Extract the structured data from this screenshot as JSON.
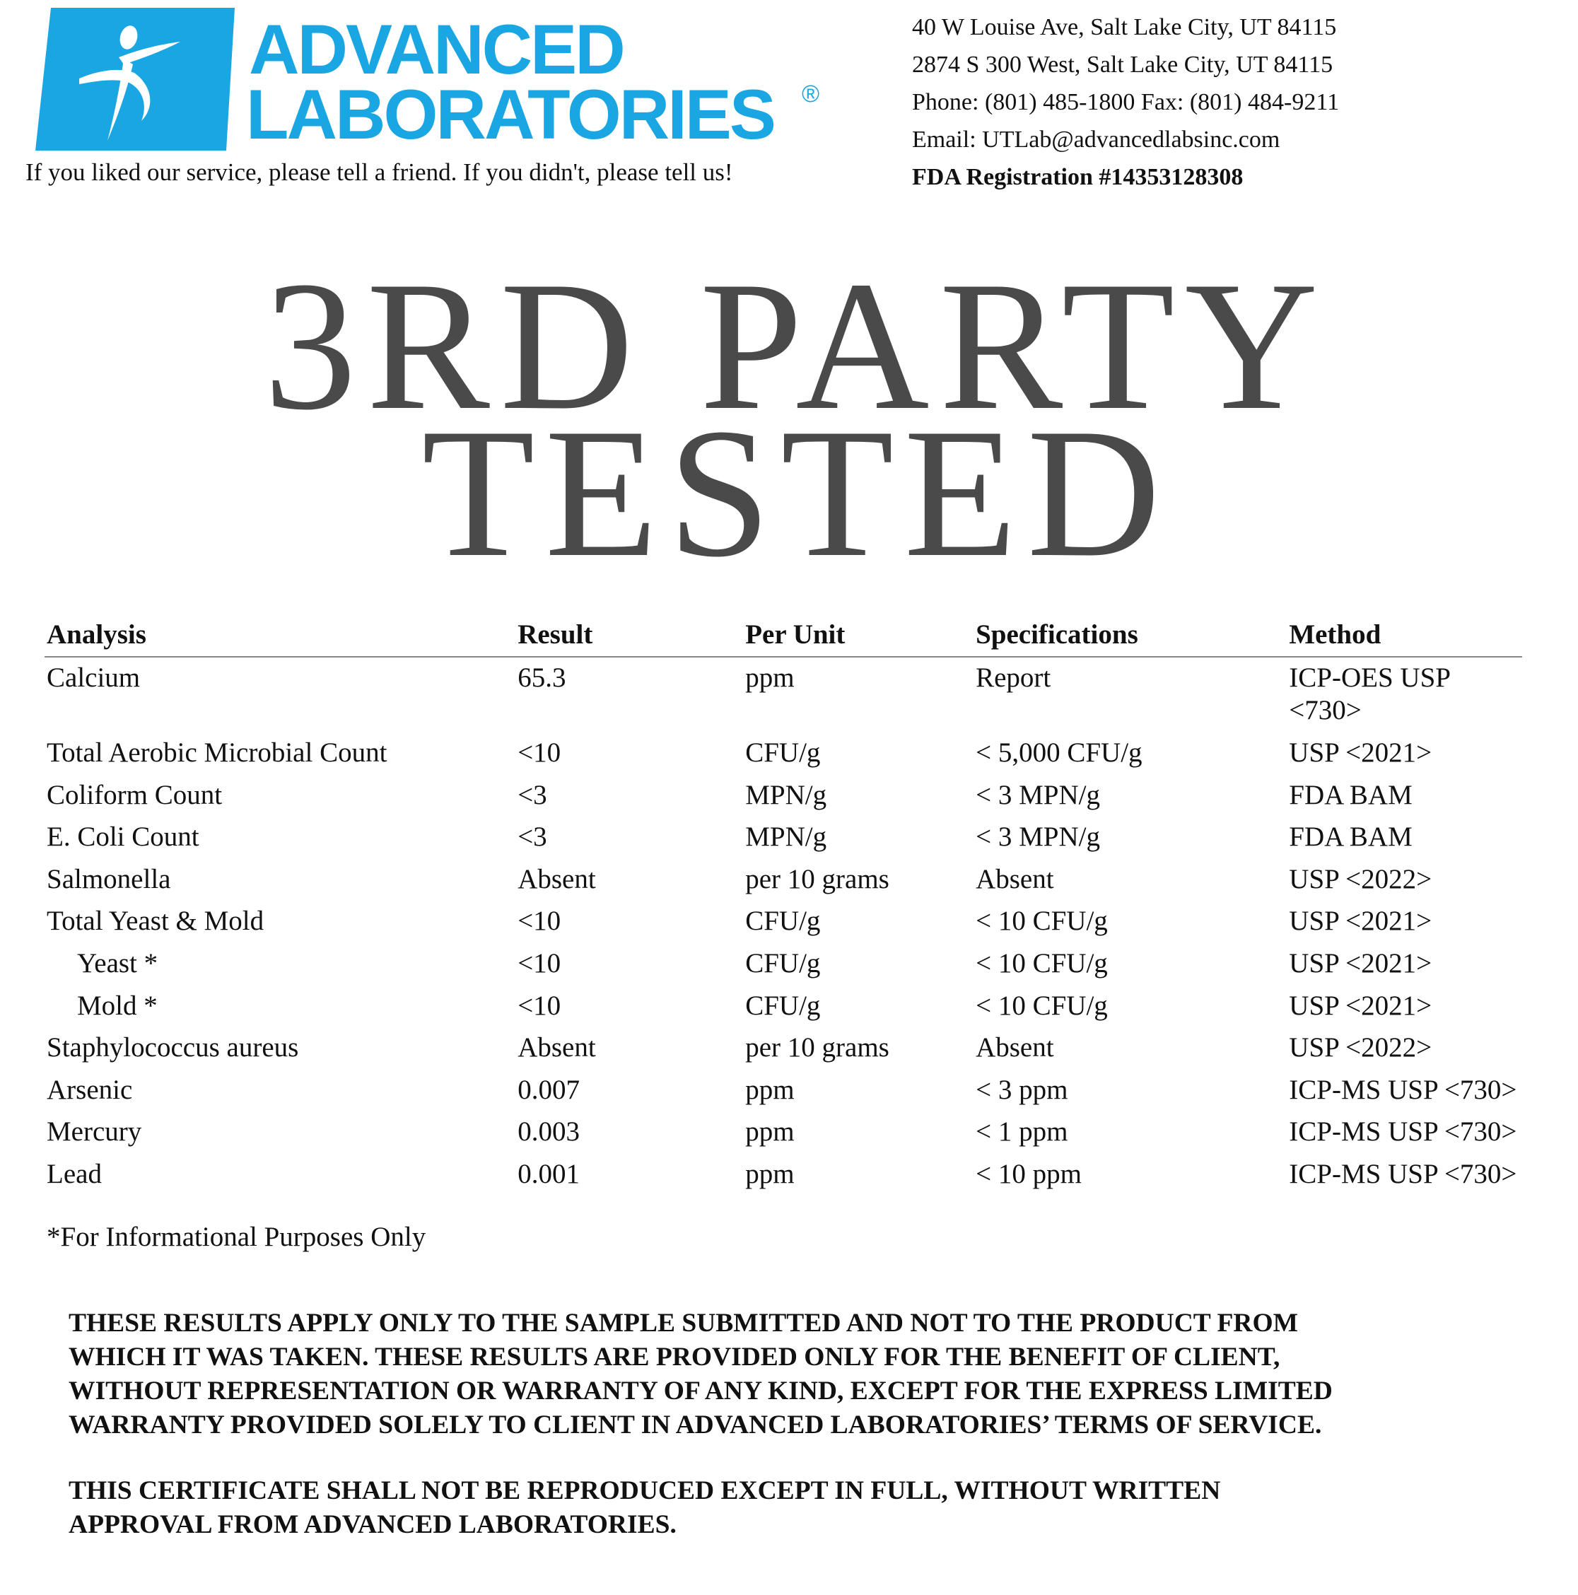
{
  "logo": {
    "line1": "ADVANCED",
    "line2": "LABORATORIES",
    "registered": "®",
    "brand_color": "#1aa6e3",
    "icon": "running-figure-icon"
  },
  "tagline": "If you liked our service, please tell a friend.  If you didn't, please tell us!",
  "address": {
    "line1": "40 W Louise Ave, Salt Lake City, UT 84115",
    "line2": "2874 S 300 West, Salt Lake City, UT 84115",
    "phone": "Phone: (801) 485-1800 Fax: (801) 484-9211",
    "email": "Email: UTLab@advancedlabsinc.com",
    "fda": "FDA Registration #14353128308"
  },
  "title": {
    "line1": "3RD PARTY",
    "line2": "TESTED"
  },
  "table": {
    "headers": [
      "Analysis",
      "Result",
      "Per Unit",
      "Specifications",
      "Method"
    ],
    "rows": [
      [
        "Calcium",
        "65.3",
        "ppm",
        "Report",
        "ICP-OES USP <730>"
      ],
      [
        "Total Aerobic Microbial Count",
        "<10",
        "CFU/g",
        "< 5,000 CFU/g",
        "USP <2021>"
      ],
      [
        "Coliform Count",
        "<3",
        "MPN/g",
        "< 3 MPN/g",
        "FDA BAM"
      ],
      [
        "E. Coli Count",
        "<3",
        "MPN/g",
        "< 3 MPN/g",
        "FDA BAM"
      ],
      [
        "Salmonella",
        "Absent",
        "per 10 grams",
        "Absent",
        "USP <2022>"
      ],
      [
        "Total Yeast & Mold",
        "<10",
        "CFU/g",
        "< 10 CFU/g",
        "USP <2021>"
      ],
      [
        "Yeast *",
        "<10",
        "CFU/g",
        "< 10 CFU/g",
        "USP <2021>"
      ],
      [
        "Mold *",
        "<10",
        "CFU/g",
        "< 10 CFU/g",
        "USP <2021>"
      ],
      [
        "Staphylococcus aureus",
        "Absent",
        "per 10 grams",
        "Absent",
        "USP <2022>"
      ],
      [
        "Arsenic",
        "0.007",
        "ppm",
        "< 3 ppm",
        "ICP-MS USP <730>"
      ],
      [
        "Mercury",
        "0.003",
        "ppm",
        "< 1 ppm",
        "ICP-MS USP <730>"
      ],
      [
        "Lead",
        "0.001",
        "ppm",
        "< 10 ppm",
        "ICP-MS USP <730>"
      ]
    ]
  },
  "footnote": "*For Informational Purposes Only",
  "disclaimer": {
    "para1": "THESE RESULTS APPLY ONLY TO THE SAMPLE SUBMITTED AND NOT TO THE PRODUCT FROM\nWHICH IT WAS TAKEN. THESE RESULTS ARE PROVIDED ONLY FOR THE BENEFIT OF CLIENT,\nWITHOUT REPRESENTATION OR WARRANTY OF ANY KIND, EXCEPT FOR THE EXPRESS LIMITED\nWARRANTY PROVIDED SOLELY TO CLIENT IN ADVANCED LABORATORIES’ TERMS OF SERVICE.",
    "para2": "THIS CERTIFICATE SHALL NOT BE REPRODUCED EXCEPT IN FULL, WITHOUT WRITTEN\nAPPROVAL FROM ADVANCED LABORATORIES."
  }
}
